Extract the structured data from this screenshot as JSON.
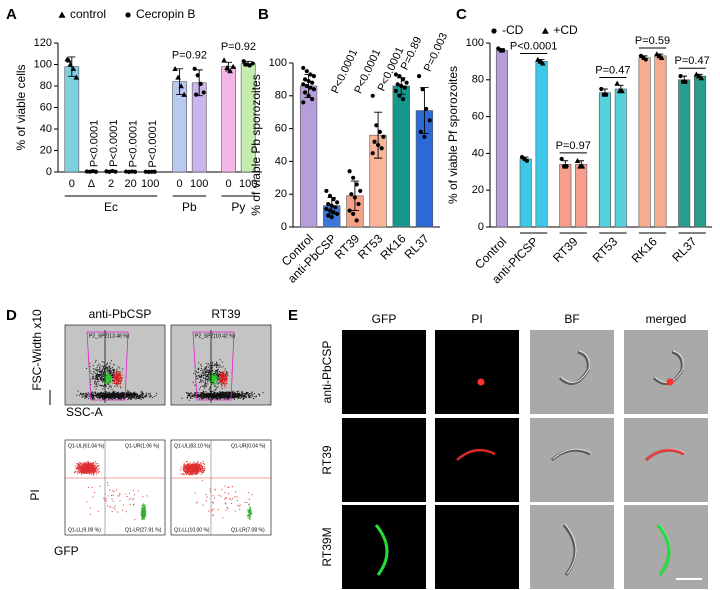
{
  "chart_data": [
    {
      "type": "bar",
      "label": "A",
      "ylabel": "% of viable cells",
      "ylim": [
        0,
        120
      ],
      "yticks": [
        0,
        20,
        40,
        60,
        80,
        100,
        120
      ],
      "brackets": false,
      "x_label_rotate": false,
      "legend": [
        {
          "name": "control",
          "marker": "triangle"
        },
        {
          "name": "Cecropin B",
          "marker": "circle"
        }
      ],
      "bars": [
        {
          "label": "0",
          "value": 98,
          "error": 9,
          "color": "#7ecfe0",
          "marker": "triangle",
          "points": [
            105,
            100,
            96,
            88,
            104
          ]
        },
        {
          "label": "Δ",
          "value": 0,
          "error": 0.5,
          "color": "#7ecfe0",
          "marker": "circle",
          "points": [
            0.5,
            0.3,
            0.8,
            0.2
          ]
        },
        {
          "label": "2",
          "value": 0.5,
          "error": 0.5,
          "color": "#7ecfe0",
          "marker": "circle",
          "points": [
            0.6,
            0.2,
            1,
            0.3
          ]
        },
        {
          "label": "20",
          "value": 0.3,
          "error": 0.3,
          "color": "#7ecfe0",
          "marker": "circle",
          "points": [
            0.4,
            0.1,
            0.5,
            0.2
          ]
        },
        {
          "label": "100",
          "value": 0.2,
          "error": 0.2,
          "color": "#7ecfe0",
          "marker": "circle",
          "points": [
            0.3,
            0.1,
            0.2,
            0.2
          ]
        },
        {
          "label": "0",
          "value": 84,
          "error": 12,
          "color": "#b9c9f0",
          "marker": "triangle",
          "points": [
            96,
            88,
            80,
            72
          ]
        },
        {
          "label": "100",
          "value": 83,
          "error": 12,
          "color": "#c9b6ec",
          "marker": "circle",
          "points": [
            96,
            90,
            82,
            74,
            72
          ]
        },
        {
          "label": "0",
          "value": 98,
          "error": 4,
          "color": "#f4b6e6",
          "marker": "triangle",
          "points": [
            104,
            97,
            94,
            98
          ]
        },
        {
          "label": "100",
          "value": 101,
          "error": 2,
          "color": "#c6ecb0",
          "marker": "circle",
          "points": [
            103,
            100,
            99,
            101,
            100
          ]
        }
      ],
      "groups": [
        {
          "label": "Ec",
          "bars": [
            0,
            1,
            2,
            3,
            4
          ]
        },
        {
          "label": "Pb",
          "bars": [
            5,
            6
          ]
        },
        {
          "label": "Py",
          "bars": [
            7,
            8
          ]
        }
      ],
      "annotations": [
        {
          "text": "P<0.0001",
          "bars": [
            1
          ],
          "rotate": -90
        },
        {
          "text": "P<0.0001",
          "bars": [
            2
          ],
          "rotate": -90
        },
        {
          "text": "P<0.0001",
          "bars": [
            3
          ],
          "rotate": -90
        },
        {
          "text": "P<0.0001",
          "bars": [
            4
          ],
          "rotate": -90
        },
        {
          "text": "P=0.92",
          "bars": [
            5,
            6
          ]
        },
        {
          "text": "P=0.92",
          "bars": [
            7,
            8
          ]
        }
      ]
    },
    {
      "type": "bar",
      "label": "B",
      "ylabel": "% of viable Pb sporozoites",
      "ylim": [
        0,
        100
      ],
      "yticks": [
        0,
        20,
        40,
        60,
        80,
        100
      ],
      "brackets": false,
      "x_label_rotate": true,
      "bars": [
        {
          "label": "Control",
          "value": 86,
          "error": 7,
          "color": "#b59ed9",
          "marker": "circle",
          "points": [
            97,
            95,
            93,
            92,
            90,
            89,
            88,
            87,
            86,
            85,
            84,
            82,
            80,
            78,
            76
          ]
        },
        {
          "label": "anti-PbCSP",
          "value": 13,
          "error": 5,
          "color": "#3c78dc",
          "marker": "circle",
          "points": [
            22,
            19,
            17,
            15,
            14,
            13,
            12,
            11,
            10,
            9,
            8,
            7,
            6
          ]
        },
        {
          "label": "RT39",
          "value": 19,
          "error": 9,
          "color": "#f5a187",
          "marker": "circle",
          "points": [
            34,
            30,
            26,
            22,
            20,
            18,
            14,
            10,
            8,
            4
          ]
        },
        {
          "label": "RT53",
          "value": 56,
          "error": 14,
          "color": "#f8b597",
          "marker": "circle",
          "points": [
            80,
            62,
            58,
            55,
            52,
            50,
            48,
            45
          ]
        },
        {
          "label": "RK16",
          "value": 86,
          "error": 5,
          "color": "#15978c",
          "marker": "circle",
          "points": [
            93,
            92,
            90,
            88,
            87,
            86,
            85,
            83,
            80,
            78
          ]
        },
        {
          "label": "RL37",
          "value": 71,
          "error": 14,
          "color": "#2b6ad6",
          "marker": "circle",
          "points": [
            92,
            84,
            72,
            65,
            58,
            55
          ]
        }
      ],
      "annotations": [
        {
          "text": "P<0.0001",
          "bars": [
            1
          ],
          "rotate": -65
        },
        {
          "text": "P<0.0001",
          "bars": [
            2
          ],
          "rotate": -65
        },
        {
          "text": "P<0.0001",
          "bars": [
            3
          ],
          "rotate": -65
        },
        {
          "text": "P=0.89",
          "bars": [
            4
          ],
          "rotate": -65
        },
        {
          "text": "P=0.003",
          "bars": [
            5
          ],
          "rotate": -65
        }
      ]
    },
    {
      "type": "bar",
      "label": "C",
      "ylabel": "% of viable Pf sporozoites",
      "ylim": [
        0,
        100
      ],
      "yticks": [
        0,
        20,
        40,
        60,
        80,
        100
      ],
      "brackets": true,
      "x_label_rotate": true,
      "legend": [
        {
          "name": "-CD",
          "marker": "circle"
        },
        {
          "name": "+CD",
          "marker": "triangle"
        }
      ],
      "bars": [
        {
          "value": 96,
          "error": 1,
          "color": "#b59ed9",
          "marker": "circle",
          "points": [
            97,
            96,
            96
          ]
        },
        {
          "value": 37,
          "error": 1,
          "color": "#3ec7e6",
          "marker": "circle",
          "points": [
            38,
            37,
            36
          ]
        },
        {
          "value": 90,
          "error": 1,
          "color": "#3ec7e6",
          "marker": "triangle",
          "points": [
            91,
            90,
            89
          ]
        },
        {
          "value": 34,
          "error": 2,
          "color": "#f59f8c",
          "marker": "circle",
          "points": [
            37,
            33,
            33
          ]
        },
        {
          "value": 34,
          "error": 2,
          "color": "#f59f8c",
          "marker": "triangle",
          "points": [
            36,
            33,
            33
          ]
        },
        {
          "value": 73,
          "error": 2,
          "color": "#56d1de",
          "marker": "circle",
          "points": [
            75,
            72,
            72
          ]
        },
        {
          "value": 75,
          "error": 2,
          "color": "#56d1de",
          "marker": "triangle",
          "points": [
            78,
            74,
            74
          ]
        },
        {
          "value": 92,
          "error": 1,
          "color": "#f8ad8e",
          "marker": "circle",
          "points": [
            93,
            92,
            91
          ]
        },
        {
          "value": 93,
          "error": 1,
          "color": "#f8ad8e",
          "marker": "triangle",
          "points": [
            94,
            93,
            92
          ]
        },
        {
          "value": 80,
          "error": 2,
          "color": "#2a9d8f",
          "marker": "circle",
          "points": [
            82,
            79,
            79
          ]
        },
        {
          "value": 82,
          "error": 1,
          "color": "#2a9d8f",
          "marker": "triangle",
          "points": [
            83,
            82,
            81
          ]
        }
      ],
      "groups": [
        {
          "label": "Control",
          "bars": [
            0
          ]
        },
        {
          "label": "anti-PfCSP",
          "bars": [
            1,
            2
          ]
        },
        {
          "label": "RT39",
          "bars": [
            3,
            4
          ]
        },
        {
          "label": "RT53",
          "bars": [
            5,
            6
          ]
        },
        {
          "label": "RK16",
          "bars": [
            7,
            8
          ]
        },
        {
          "label": "RL37",
          "bars": [
            9,
            10
          ]
        }
      ],
      "annotations": [
        {
          "text": "P<0.0001",
          "bars": [
            1,
            2
          ]
        },
        {
          "text": "P=0.97",
          "bars": [
            3,
            4
          ]
        },
        {
          "text": "P=0.47",
          "bars": [
            5,
            6
          ]
        },
        {
          "text": "P=0.59",
          "bars": [
            7,
            8
          ]
        },
        {
          "text": "P=0.47",
          "bars": [
            9,
            10
          ]
        }
      ]
    }
  ],
  "panel_d": {
    "label": "D",
    "titles": [
      "anti-PbCSP",
      "RT39"
    ],
    "ylabel_top": "FSC-Width x10",
    "xlabel_top": "SSC-A",
    "gates": [
      "P2_SPZ(13.48 %)",
      "P2_SPZ(18.42 %)"
    ],
    "ylabel_bottom": "PI",
    "xlabel_bottom": "GFP",
    "quadrants": [
      [
        "Q1-UL(61.04 %)",
        "Q1-UR(1.06 %)",
        "Q1-LL(9.09 %)",
        "Q1-LR(27.91 %)"
      ],
      [
        "Q1-UL(83.10 %)",
        "Q1-UR(0.04 %)",
        "Q1-LL(10.00 %)",
        "Q1-LR(7.08 %)"
      ]
    ]
  },
  "panel_e": {
    "label": "E",
    "columns": [
      "GFP",
      "PI",
      "BF",
      "merged"
    ],
    "rows": [
      "anti-PbCSP",
      "RT39",
      "RT39M"
    ]
  }
}
